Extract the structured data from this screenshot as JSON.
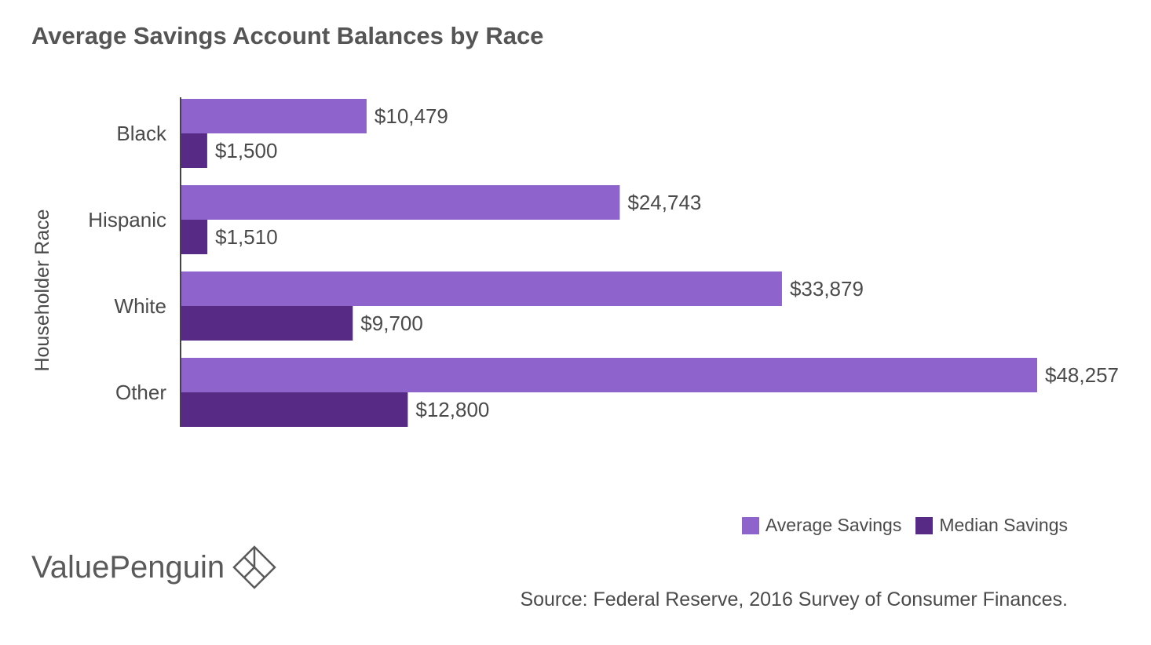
{
  "title": "Average Savings Account Balances by Race",
  "chart_data": {
    "type": "bar",
    "orientation": "horizontal",
    "title": "Average Savings Account Balances by Race",
    "ylabel": "Householder Race",
    "xlabel": "",
    "categories": [
      "Black",
      "Hispanic",
      "White",
      "Other"
    ],
    "series": [
      {
        "name": "Average Savings",
        "color": "#8e63cc",
        "values": [
          10479,
          24743,
          33879,
          48257
        ],
        "labels": [
          "$10,479",
          "$24,743",
          "$33,879",
          "$48,257"
        ]
      },
      {
        "name": "Median Savings",
        "color": "#572a86",
        "values": [
          1500,
          1510,
          9700,
          12800
        ],
        "labels": [
          "$1,500",
          "$1,510",
          "$9,700",
          "$12,800"
        ]
      }
    ],
    "xlim": [
      0,
      48257
    ],
    "legend_position": "bottom-right",
    "grid": false
  },
  "legend": [
    {
      "label": "Average Savings",
      "color": "#8e63cc"
    },
    {
      "label": "Median Savings",
      "color": "#572a86"
    }
  ],
  "logo": {
    "text": "ValuePenguin",
    "icon": "diamond-logo-icon"
  },
  "source": "Source: Federal Reserve, 2016 Survey of Consumer Finances."
}
